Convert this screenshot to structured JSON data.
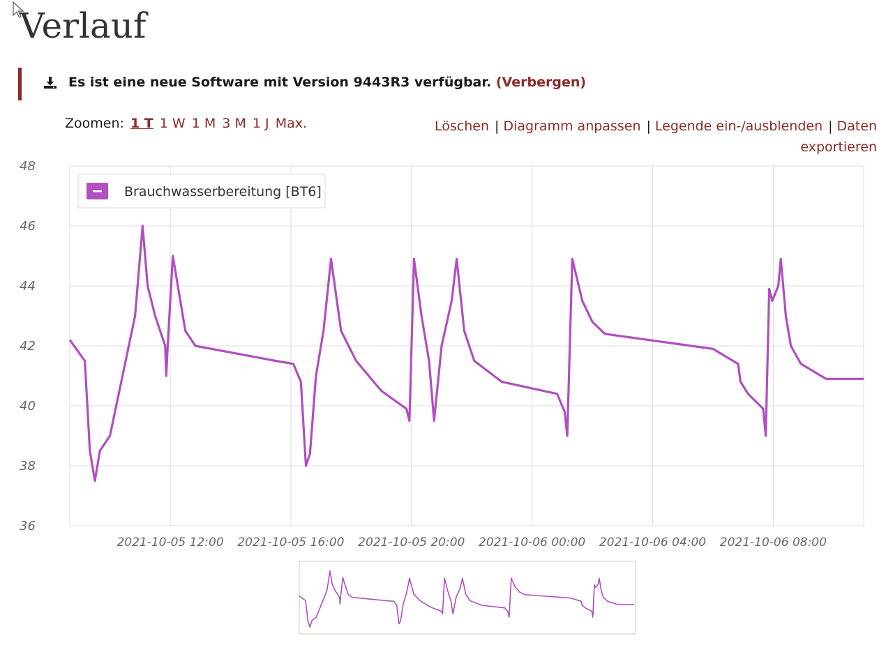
{
  "page": {
    "title": "Verlauf"
  },
  "notice": {
    "message": "Es ist eine neue Software mit Version 9443R3 verfügbar.",
    "hide_label": "(Verbergen)"
  },
  "zoom": {
    "label": "Zoomen:",
    "options": [
      "1 T",
      "1 W",
      "1 M",
      "3 M",
      "1 J",
      "Max."
    ],
    "selected": "1 T"
  },
  "actions": {
    "clear": "Löschen",
    "customize": "Diagramm anpassen",
    "toggle_legend": "Legende ein-/ausblenden",
    "export": "Daten exportieren",
    "separator": "|"
  },
  "colors": {
    "accent": "#8c2a2a",
    "series": "#b04fc0"
  },
  "chart_data": {
    "type": "line",
    "title": "",
    "xlabel": "",
    "ylabel": "",
    "ylim": [
      36,
      48
    ],
    "yticks": [
      36,
      38,
      40,
      42,
      44,
      46,
      48
    ],
    "xlim": [
      "2021-10-05 08:40",
      "2021-10-06 11:00"
    ],
    "xticks": [
      "2021-10-05 12:00",
      "2021-10-05 16:00",
      "2021-10-05 20:00",
      "2021-10-06 00:00",
      "2021-10-06 04:00",
      "2021-10-06 08:00"
    ],
    "grid": true,
    "legend_position": "top-left",
    "series": [
      {
        "name": "Brauchwasserbereitung [BT6]",
        "color": "#b04fc0",
        "points": [
          [
            "2021-10-05 08:40",
            42.2
          ],
          [
            "2021-10-05 09:10",
            41.5
          ],
          [
            "2021-10-05 09:20",
            38.5
          ],
          [
            "2021-10-05 09:30",
            37.5
          ],
          [
            "2021-10-05 09:40",
            38.5
          ],
          [
            "2021-10-05 10:00",
            39.0
          ],
          [
            "2021-10-05 10:50",
            43.0
          ],
          [
            "2021-10-05 11:05",
            46.0
          ],
          [
            "2021-10-05 11:15",
            44.0
          ],
          [
            "2021-10-05 11:30",
            43.0
          ],
          [
            "2021-10-05 11:50",
            42.0
          ],
          [
            "2021-10-05 11:52",
            41.0
          ],
          [
            "2021-10-05 11:55",
            42.0
          ],
          [
            "2021-10-05 12:05",
            45.0
          ],
          [
            "2021-10-05 12:15",
            44.0
          ],
          [
            "2021-10-05 12:30",
            42.5
          ],
          [
            "2021-10-05 12:50",
            42.0
          ],
          [
            "2021-10-05 15:30",
            41.5
          ],
          [
            "2021-10-05 16:05",
            41.4
          ],
          [
            "2021-10-05 16:20",
            40.8
          ],
          [
            "2021-10-05 16:30",
            38.0
          ],
          [
            "2021-10-05 16:38",
            38.4
          ],
          [
            "2021-10-05 16:50",
            41.0
          ],
          [
            "2021-10-05 17:05",
            42.5
          ],
          [
            "2021-10-05 17:20",
            44.9
          ],
          [
            "2021-10-05 17:40",
            42.5
          ],
          [
            "2021-10-05 18:10",
            41.5
          ],
          [
            "2021-10-05 19:00",
            40.5
          ],
          [
            "2021-10-05 19:50",
            39.9
          ],
          [
            "2021-10-05 19:56",
            39.5
          ],
          [
            "2021-10-05 20:05",
            44.9
          ],
          [
            "2021-10-05 20:20",
            43.0
          ],
          [
            "2021-10-05 20:35",
            41.5
          ],
          [
            "2021-10-05 20:45",
            39.5
          ],
          [
            "2021-10-05 21:00",
            42.0
          ],
          [
            "2021-10-05 21:20",
            43.5
          ],
          [
            "2021-10-05 21:30",
            44.9
          ],
          [
            "2021-10-05 21:45",
            42.5
          ],
          [
            "2021-10-05 22:05",
            41.5
          ],
          [
            "2021-10-05 23:00",
            40.8
          ],
          [
            "2021-10-06 00:50",
            40.4
          ],
          [
            "2021-10-06 01:05",
            39.8
          ],
          [
            "2021-10-06 01:10",
            39.0
          ],
          [
            "2021-10-06 01:20",
            44.9
          ],
          [
            "2021-10-06 01:40",
            43.5
          ],
          [
            "2021-10-06 02:00",
            42.8
          ],
          [
            "2021-10-06 02:25",
            42.4
          ],
          [
            "2021-10-06 06:00",
            41.9
          ],
          [
            "2021-10-06 06:50",
            41.4
          ],
          [
            "2021-10-06 06:55",
            40.8
          ],
          [
            "2021-10-06 07:10",
            40.4
          ],
          [
            "2021-10-06 07:40",
            39.9
          ],
          [
            "2021-10-06 07:45",
            39.0
          ],
          [
            "2021-10-06 07:52",
            43.9
          ],
          [
            "2021-10-06 07:58",
            43.5
          ],
          [
            "2021-10-06 08:10",
            44.0
          ],
          [
            "2021-10-06 08:15",
            44.9
          ],
          [
            "2021-10-06 08:25",
            43.0
          ],
          [
            "2021-10-06 08:35",
            42.0
          ],
          [
            "2021-10-06 08:55",
            41.4
          ],
          [
            "2021-10-06 09:45",
            40.9
          ],
          [
            "2021-10-06 11:00",
            40.9
          ]
        ]
      }
    ]
  }
}
